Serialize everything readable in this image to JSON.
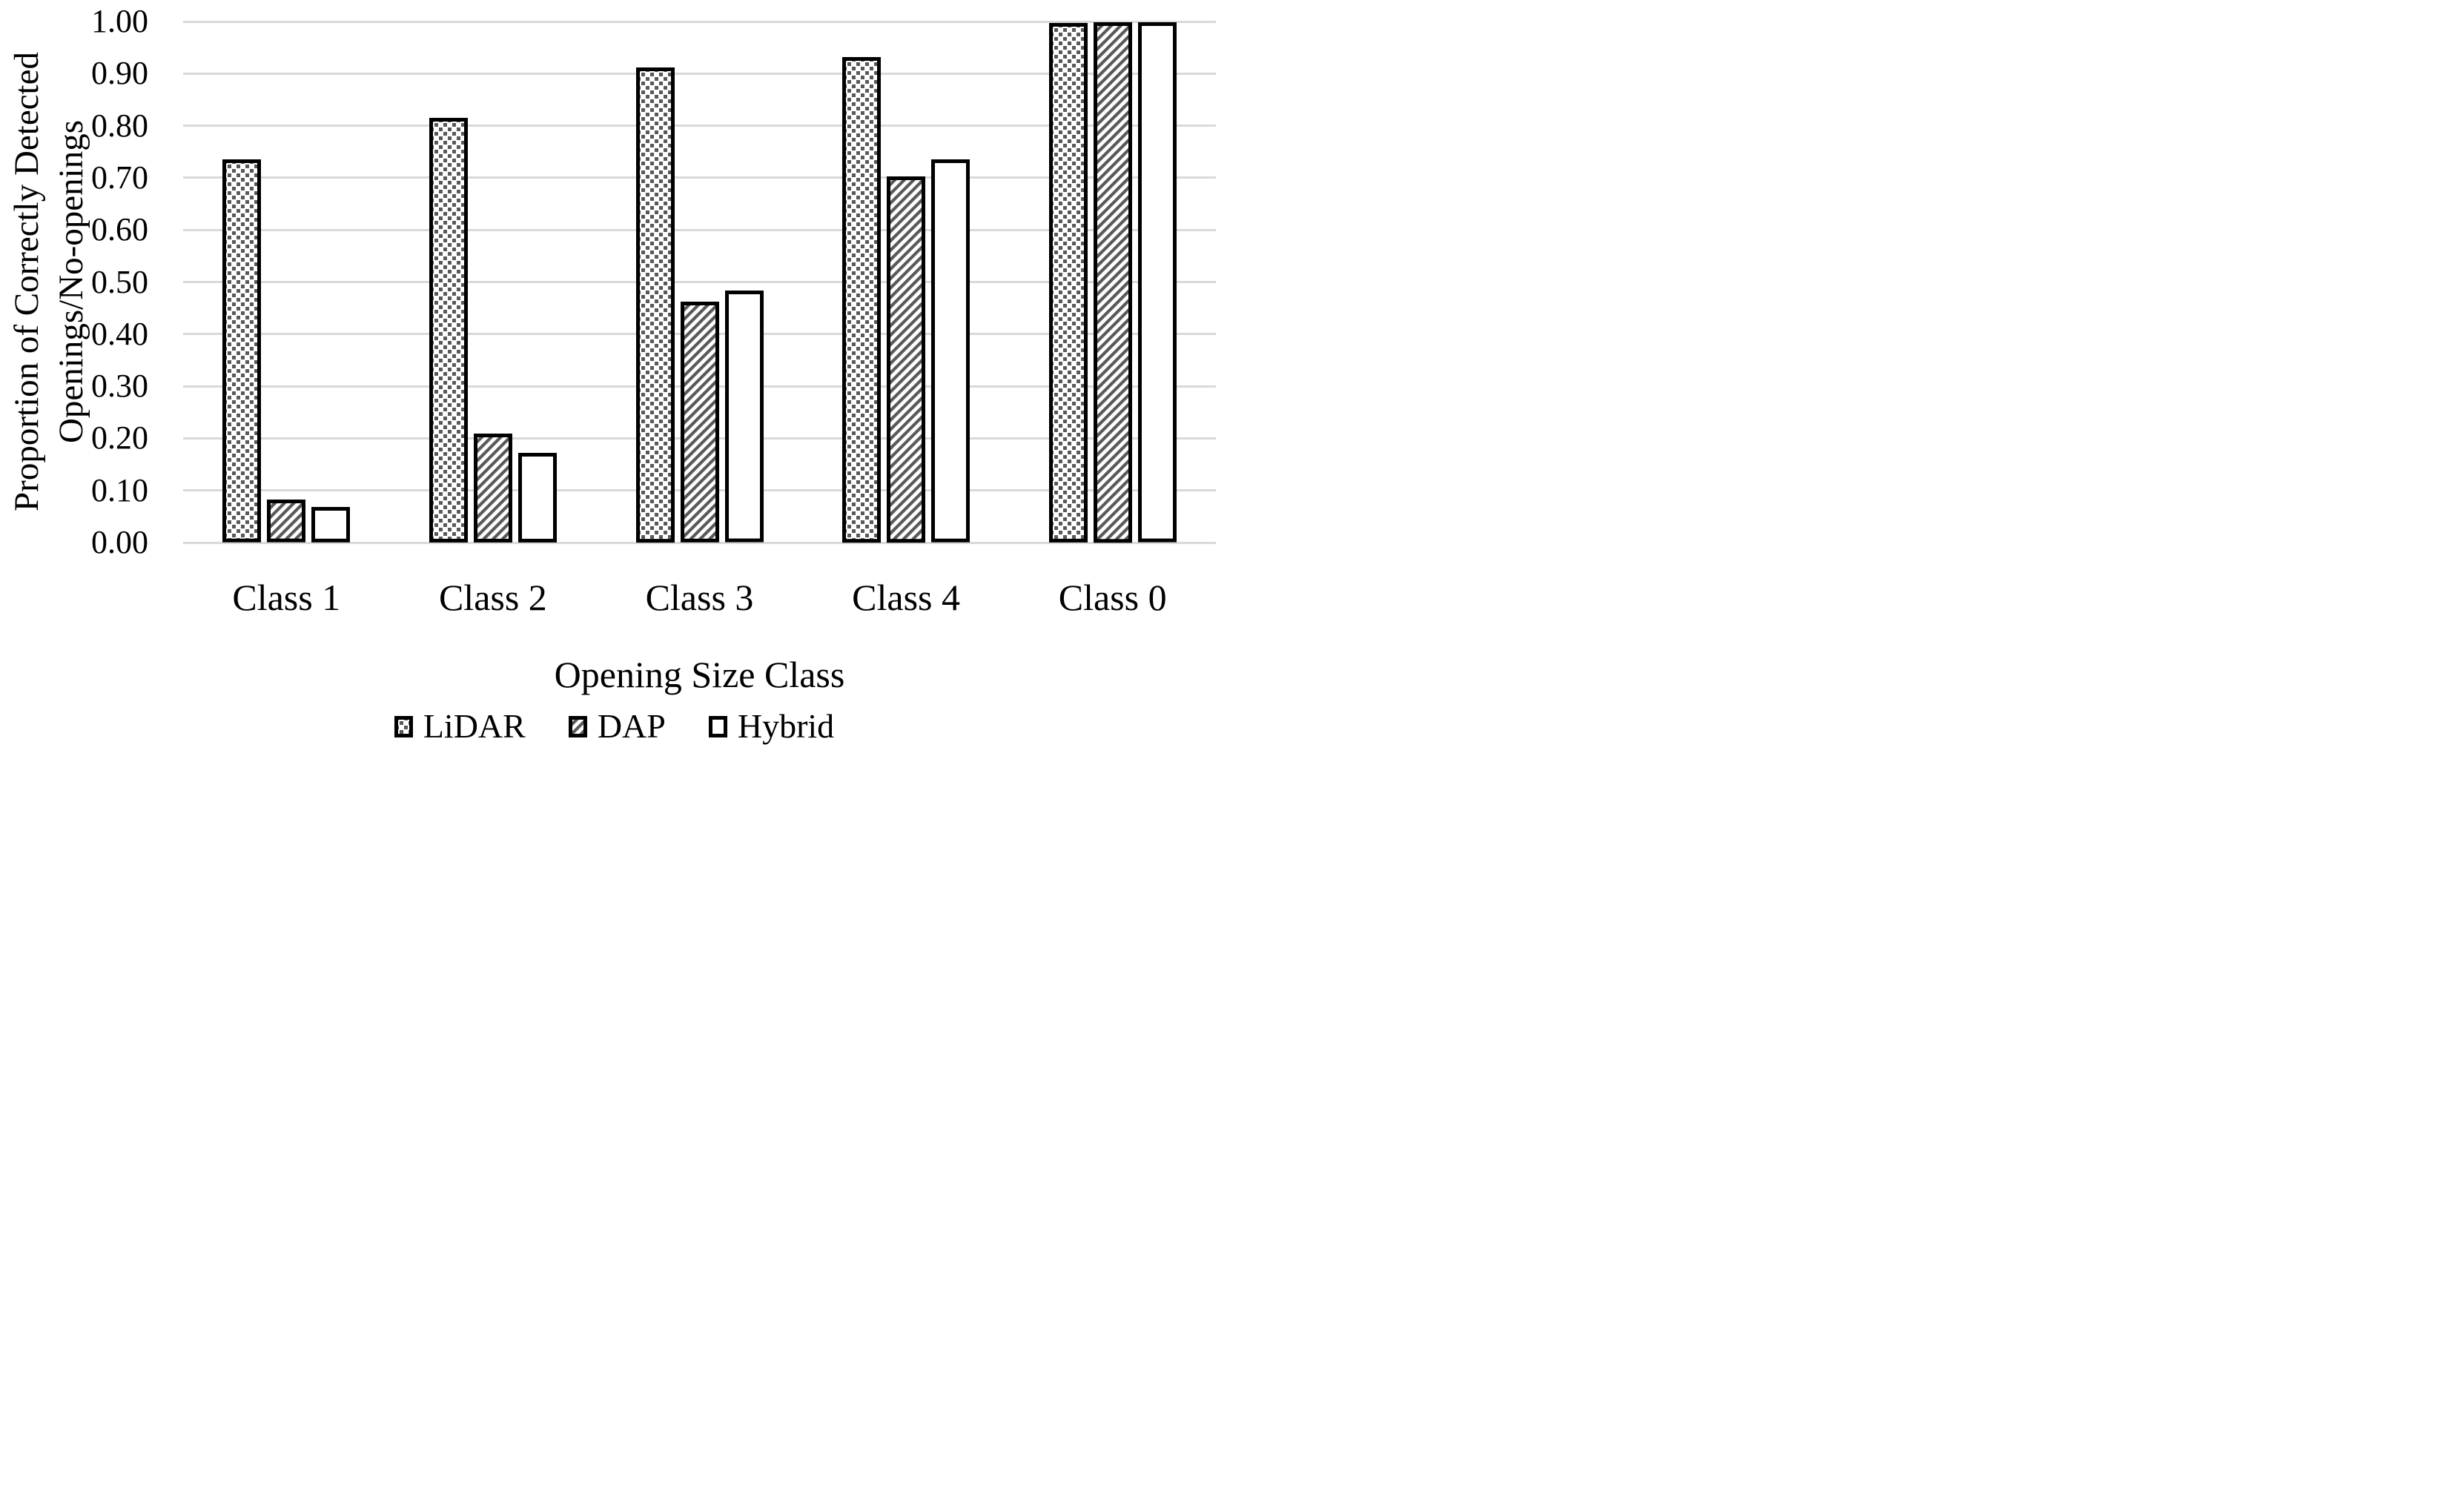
{
  "chart_data": {
    "type": "bar",
    "title": "",
    "categories": [
      "Class 1",
      "Class 2",
      "Class 3",
      "Class 4",
      "Class 0"
    ],
    "series": [
      {
        "name": "LiDAR",
        "pattern": "dotted-squares",
        "values": [
          0.735,
          0.815,
          0.912,
          0.932,
          0.997
        ]
      },
      {
        "name": "DAP",
        "pattern": "diagonal-hatch",
        "values": [
          0.082,
          0.209,
          0.462,
          0.703,
          0.999
        ]
      },
      {
        "name": "Hybrid",
        "pattern": "plain-white",
        "values": [
          0.068,
          0.172,
          0.483,
          0.735,
          0.998
        ]
      }
    ],
    "xlabel": "Opening Size Class",
    "ylabel": "Proportion of Correctly Detected Openings/No-openings",
    "ylabel_lines": [
      "Proportion of  Correctly Detected",
      "Openings/No-openings"
    ],
    "ylim": [
      0,
      1
    ],
    "ytick_step": 0.1,
    "yticks": [
      "0.00",
      "0.10",
      "0.20",
      "0.30",
      "0.40",
      "0.50",
      "0.60",
      "0.70",
      "0.80",
      "0.90",
      "1.00"
    ],
    "grid": "horizontal-only",
    "legend_position": "bottom-center",
    "colors": {
      "pattern_fill": "#595959",
      "bar_outline": "#000000",
      "gridline": "#d9d9d9",
      "text": "#000000",
      "background": "#ffffff"
    }
  }
}
